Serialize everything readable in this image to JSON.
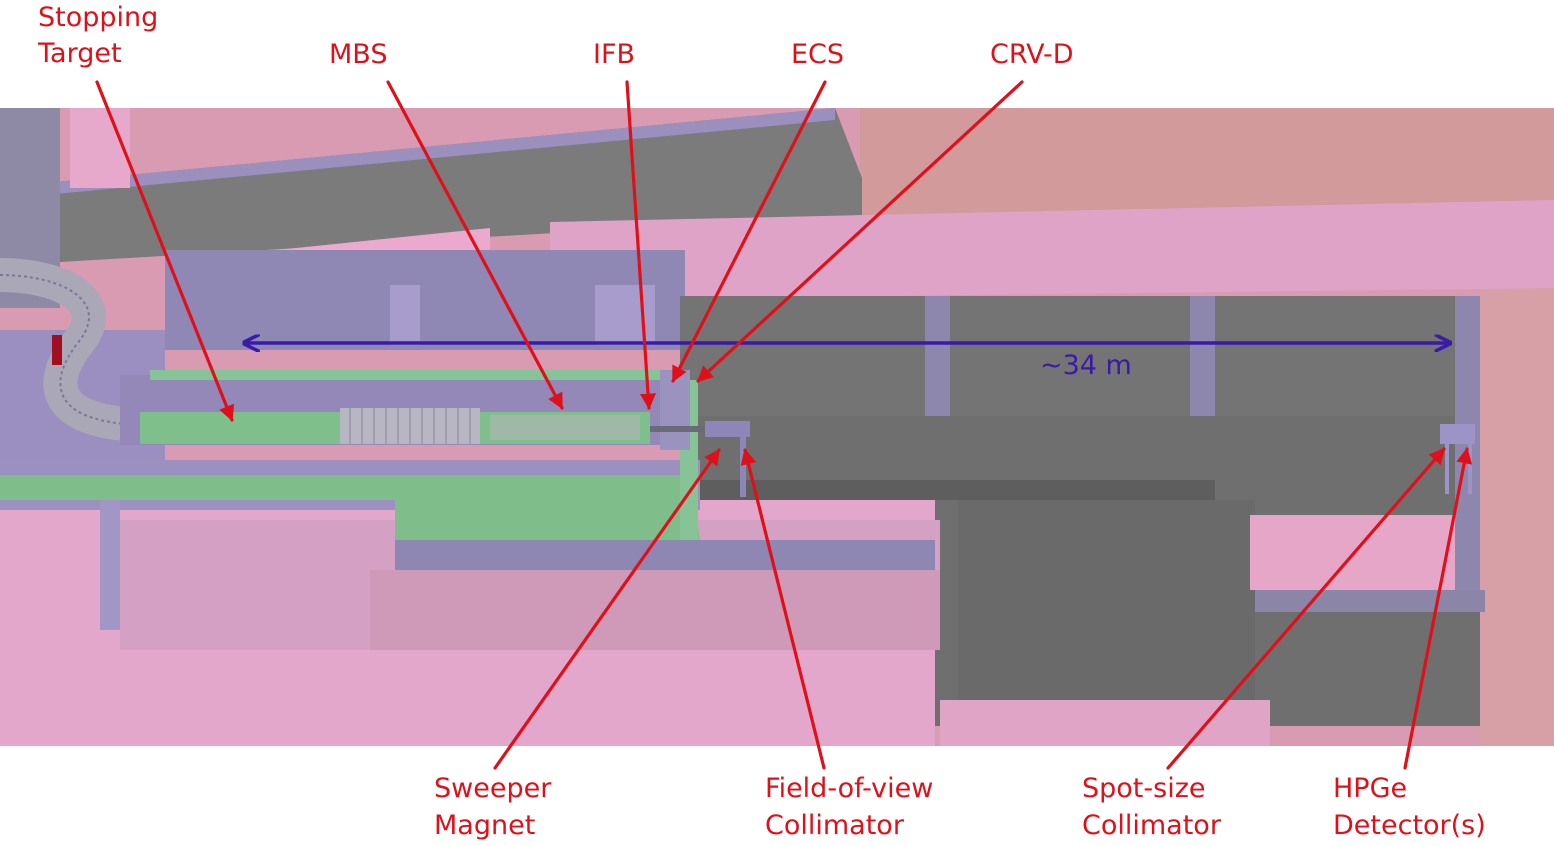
{
  "labels": {
    "stopping_target": [
      "Stopping",
      "Target"
    ],
    "mbs": "MBS",
    "ifb": "IFB",
    "ecs": "ECS",
    "crv_d": "CRV-D",
    "sweeper_magnet": [
      "Sweeper",
      "Magnet"
    ],
    "fov_collimator": [
      "Field-of-view",
      "Collimator"
    ],
    "spot_size_collimator": [
      "Spot-size",
      "Collimator"
    ],
    "hpge_detectors": [
      "HPGe",
      "Detector(s)"
    ]
  },
  "dimension": {
    "text": "∼34 m"
  },
  "colors": {
    "label": "#e0101a",
    "dimension": "#3a1aa8",
    "wall_pink": "#e8a6c8",
    "floor_gray": "#6e6e6e",
    "structure_purple": "#9a8fc0",
    "detector_green": "#7fbf8c"
  }
}
